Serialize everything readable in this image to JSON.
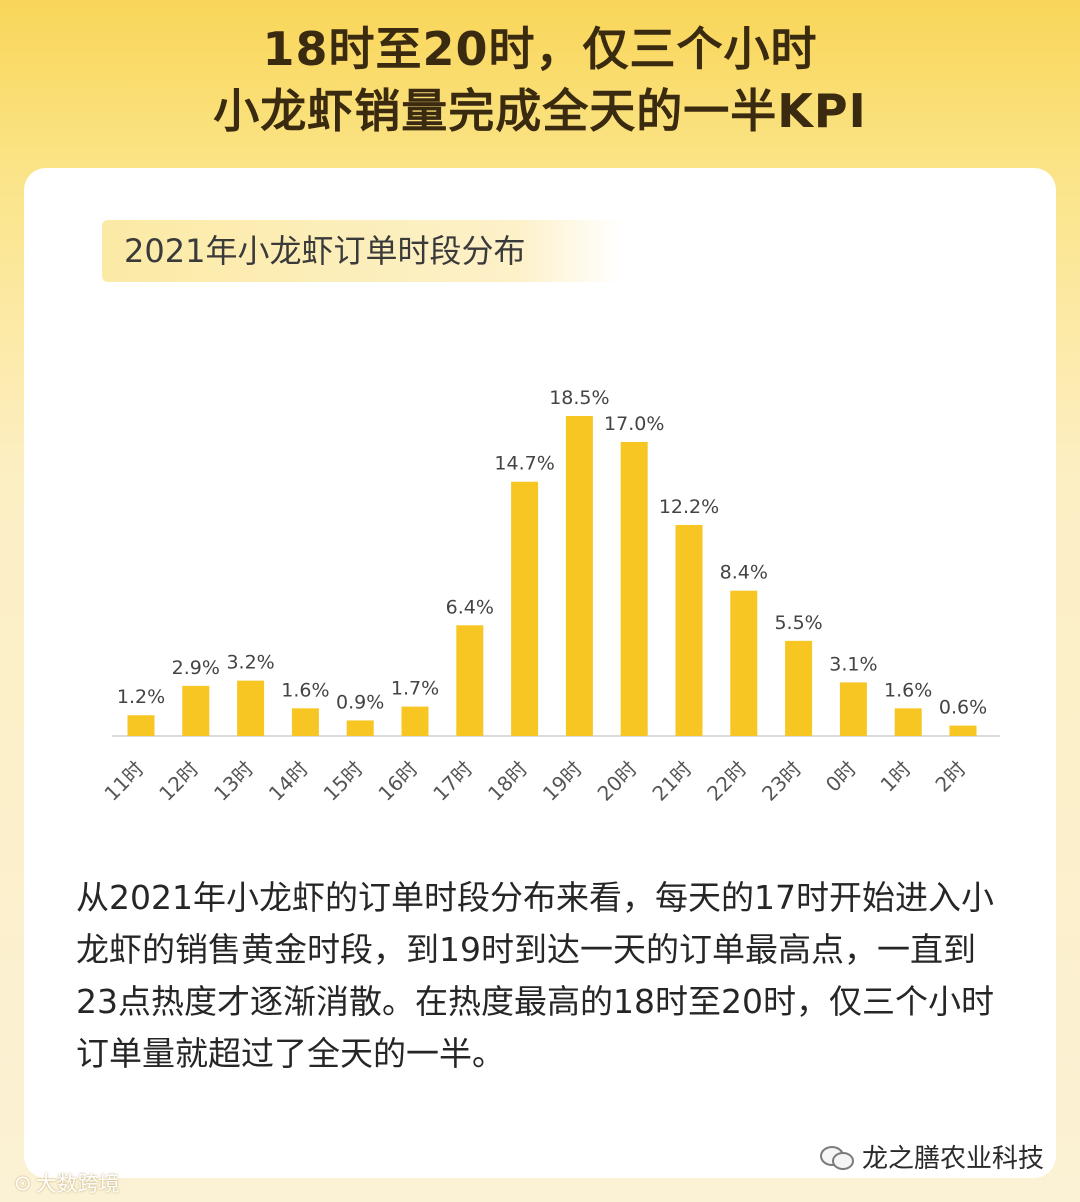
{
  "headline": {
    "line1": "18时至20时，仅三个小时",
    "line2": "小龙虾销量完成全天的一半KPI"
  },
  "chart_data": {
    "type": "bar",
    "title": "2021年小龙虾订单时段分布",
    "categories": [
      "11时",
      "12时",
      "13时",
      "14时",
      "15时",
      "16时",
      "17时",
      "18时",
      "19时",
      "20时",
      "21时",
      "22时",
      "23时",
      "0时",
      "1时",
      "2时"
    ],
    "values": [
      1.2,
      2.9,
      3.2,
      1.6,
      0.9,
      1.7,
      6.4,
      14.7,
      18.5,
      17.0,
      12.2,
      8.4,
      5.5,
      3.1,
      1.6,
      0.6
    ],
    "value_labels": [
      "1.2%",
      "2.9%",
      "3.2%",
      "1.6%",
      "0.9%",
      "1.7%",
      "6.4%",
      "14.7%",
      "18.5%",
      "17.0%",
      "12.2%",
      "8.4%",
      "5.5%",
      "3.1%",
      "1.6%",
      "0.6%"
    ],
    "unit": "%",
    "ylim": [
      0,
      18.5
    ],
    "grid": false,
    "bar_color": "#f7c623"
  },
  "description": "从2021年小龙虾的订单时段分布来看，每天的17时开始进入小龙虾的销售黄金时段，到19时到达一天的订单最高点，一直到23点热度才逐渐消散。在热度最高的18时至20时，仅三个小时订单量就超过了全天的一半。",
  "brand": {
    "name": "龙之膳农业科技",
    "icon": "wechat-icon"
  },
  "watermark": {
    "text": "大数跨境"
  }
}
